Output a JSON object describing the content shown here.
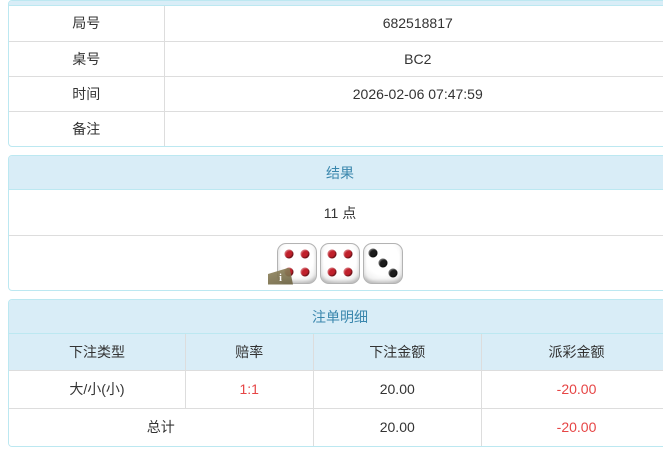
{
  "info_panel": {
    "rows": [
      {
        "label": "局号",
        "value": "682518817"
      },
      {
        "label": "桌号",
        "value": "BC2"
      },
      {
        "label": "时间",
        "value": "2026-02-06 07:47:59"
      },
      {
        "label": "备注",
        "value": ""
      }
    ]
  },
  "result_panel": {
    "title": "结果",
    "points": "11 点",
    "dice": [
      {
        "value": 4,
        "pip_color": "#c0202b",
        "has_info_badge": true
      },
      {
        "value": 4,
        "pip_color": "#c0202b",
        "has_info_badge": false
      },
      {
        "value": 3,
        "pip_color": "#1c1c1c",
        "has_info_badge": false
      }
    ],
    "info_badge_label": "i"
  },
  "bets_panel": {
    "title": "注单明细",
    "columns": [
      "下注类型",
      "赔率",
      "下注金额",
      "派彩金额"
    ],
    "rows": [
      {
        "bet_type": "大/小(小)",
        "odds": "1:1",
        "bet_amount": "20.00",
        "payout": "-20.00"
      }
    ],
    "total": {
      "label": "总计",
      "bet_amount": "20.00",
      "payout": "-20.00"
    }
  },
  "colors": {
    "panel_border": "#bce8f1",
    "heading_bg": "#d9edf7",
    "heading_text": "#3a87ad",
    "row_border": "#dddddd",
    "text": "#333333",
    "negative": "#e64545"
  }
}
